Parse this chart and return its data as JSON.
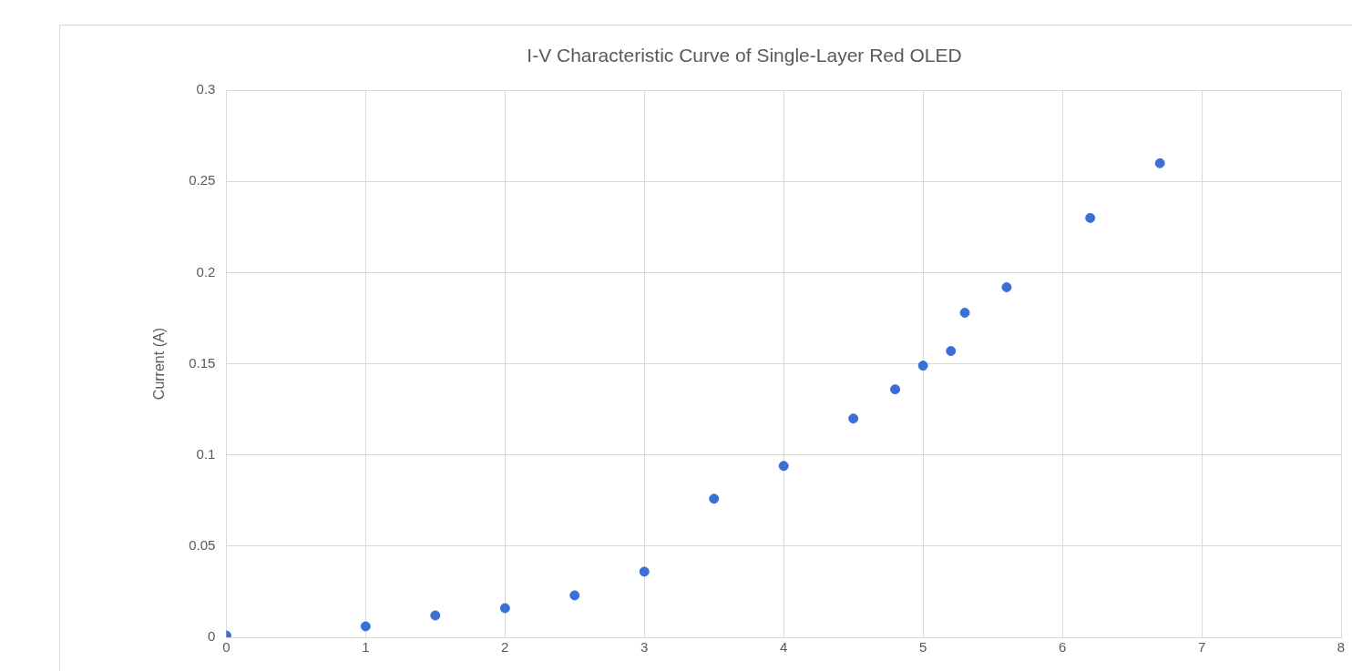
{
  "chart_data": {
    "type": "scatter",
    "title": "I-V Characteristic Curve of Single-Layer Red OLED",
    "ylabel": "Current (A)",
    "series": [
      {
        "color": "#3a6fd6",
        "x": [
          0,
          1,
          1.5,
          2,
          2.5,
          3,
          3.5,
          4,
          4.5,
          4.8,
          5,
          5.2,
          5.3,
          5.6,
          6.2,
          6.7
        ],
        "values": [
          0.001,
          0.006,
          0.012,
          0.016,
          0.023,
          0.036,
          0.076,
          0.094,
          0.12,
          0.136,
          0.149,
          0.157,
          0.178,
          0.192,
          0.23,
          0.26
        ]
      }
    ],
    "xlim": [
      0,
      8
    ],
    "xticks": [
      0,
      1,
      2,
      3,
      4,
      5,
      6,
      7,
      8
    ],
    "ylim": [
      0,
      0.3
    ],
    "yticks": [
      0,
      0.05,
      0.1,
      0.15,
      0.2,
      0.25,
      0.3
    ],
    "grid": true,
    "legend": false,
    "marker": "circle"
  }
}
